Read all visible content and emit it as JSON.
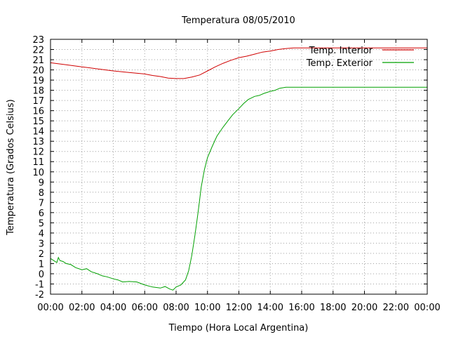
{
  "chart_data": {
    "type": "line",
    "title": "Temperatura 08/05/2010",
    "xlabel": "Tiempo (Hora Local Argentina)",
    "ylabel": "Temperatura (Grados Celsius)",
    "x_unit": "hours",
    "xlim": [
      0,
      24
    ],
    "ylim": [
      -2,
      23
    ],
    "x_ticks": [
      {
        "value": 0,
        "label": "00:00"
      },
      {
        "value": 2,
        "label": "02:00"
      },
      {
        "value": 4,
        "label": "04:00"
      },
      {
        "value": 6,
        "label": "06:00"
      },
      {
        "value": 8,
        "label": "08:00"
      },
      {
        "value": 10,
        "label": "10:00"
      },
      {
        "value": 12,
        "label": "12:00"
      },
      {
        "value": 14,
        "label": "14:00"
      },
      {
        "value": 16,
        "label": "16:00"
      },
      {
        "value": 18,
        "label": "18:00"
      },
      {
        "value": 20,
        "label": "20:00"
      },
      {
        "value": 22,
        "label": "22:00"
      },
      {
        "value": 24,
        "label": "00:00"
      }
    ],
    "y_ticks": [
      -2,
      -1,
      0,
      1,
      2,
      3,
      4,
      5,
      6,
      7,
      8,
      9,
      10,
      11,
      12,
      13,
      14,
      15,
      16,
      17,
      18,
      19,
      20,
      21,
      22,
      23
    ],
    "grid": true,
    "legend_position": "top-right",
    "series": [
      {
        "name": "Temp. Interior",
        "color": "#d00000",
        "points": [
          [
            0,
            20.7
          ],
          [
            1,
            20.5
          ],
          [
            2,
            20.3
          ],
          [
            3,
            20.1
          ],
          [
            4,
            19.9
          ],
          [
            5,
            19.75
          ],
          [
            6,
            19.6
          ],
          [
            6.5,
            19.45
          ],
          [
            7,
            19.35
          ],
          [
            7.5,
            19.2
          ],
          [
            8,
            19.15
          ],
          [
            8.5,
            19.15
          ],
          [
            9,
            19.3
          ],
          [
            9.5,
            19.5
          ],
          [
            10,
            19.9
          ],
          [
            10.5,
            20.3
          ],
          [
            11,
            20.65
          ],
          [
            11.5,
            20.95
          ],
          [
            12,
            21.2
          ],
          [
            12.5,
            21.35
          ],
          [
            13,
            21.55
          ],
          [
            13.5,
            21.75
          ],
          [
            14,
            21.85
          ],
          [
            14.5,
            22.0
          ],
          [
            15,
            22.1
          ],
          [
            15.5,
            22.15
          ],
          [
            16,
            22.15
          ],
          [
            18,
            22.15
          ],
          [
            20,
            22.15
          ],
          [
            22,
            22.15
          ],
          [
            24,
            22.15
          ]
        ]
      },
      {
        "name": "Temp. Exterior",
        "color": "#00a000",
        "points": [
          [
            0,
            1.5
          ],
          [
            0.2,
            1.3
          ],
          [
            0.4,
            1.1
          ],
          [
            0.5,
            1.6
          ],
          [
            0.6,
            1.3
          ],
          [
            0.8,
            1.2
          ],
          [
            1,
            1.0
          ],
          [
            1.3,
            0.9
          ],
          [
            1.6,
            0.6
          ],
          [
            2,
            0.4
          ],
          [
            2.3,
            0.5
          ],
          [
            2.6,
            0.2
          ],
          [
            3,
            0.0
          ],
          [
            3.3,
            -0.2
          ],
          [
            3.6,
            -0.3
          ],
          [
            4,
            -0.5
          ],
          [
            4.3,
            -0.6
          ],
          [
            4.6,
            -0.8
          ],
          [
            5,
            -0.75
          ],
          [
            5.5,
            -0.8
          ],
          [
            6,
            -1.1
          ],
          [
            6.5,
            -1.3
          ],
          [
            7,
            -1.4
          ],
          [
            7.3,
            -1.25
          ],
          [
            7.6,
            -1.5
          ],
          [
            7.8,
            -1.6
          ],
          [
            8,
            -1.3
          ],
          [
            8.3,
            -1.1
          ],
          [
            8.6,
            -0.6
          ],
          [
            8.8,
            0.3
          ],
          [
            9.0,
            1.8
          ],
          [
            9.2,
            3.8
          ],
          [
            9.4,
            6.0
          ],
          [
            9.6,
            8.5
          ],
          [
            9.8,
            10.2
          ],
          [
            10,
            11.4
          ],
          [
            10.3,
            12.5
          ],
          [
            10.6,
            13.5
          ],
          [
            11,
            14.4
          ],
          [
            11.3,
            15.0
          ],
          [
            11.6,
            15.6
          ],
          [
            12,
            16.2
          ],
          [
            12.3,
            16.7
          ],
          [
            12.6,
            17.1
          ],
          [
            13,
            17.4
          ],
          [
            13.3,
            17.5
          ],
          [
            13.6,
            17.7
          ],
          [
            14,
            17.9
          ],
          [
            14.3,
            18.0
          ],
          [
            14.6,
            18.2
          ],
          [
            15,
            18.3
          ],
          [
            16,
            18.3
          ],
          [
            18,
            18.3
          ],
          [
            20,
            18.3
          ],
          [
            22,
            18.3
          ],
          [
            24,
            18.3
          ]
        ]
      }
    ]
  }
}
